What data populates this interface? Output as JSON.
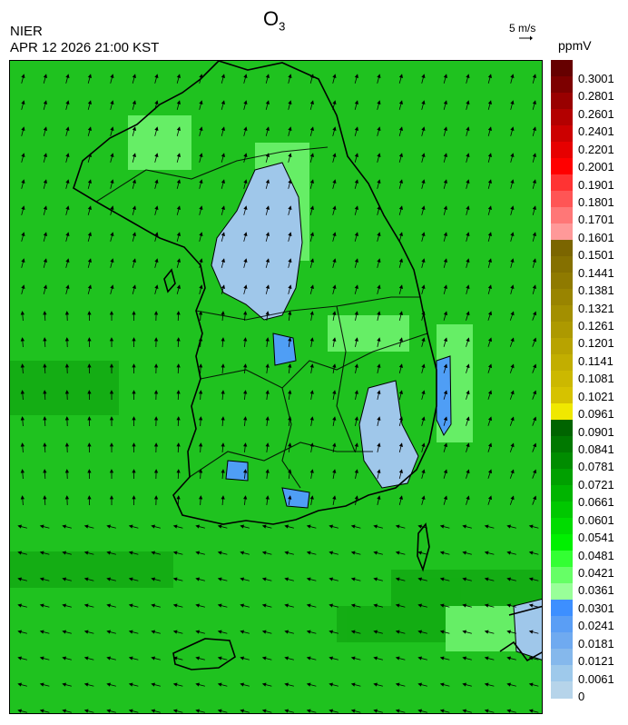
{
  "header": {
    "agency": "NIER",
    "datetime": "APR 12 2026 21:00 KST",
    "title_main": "O",
    "title_sub": "3",
    "wind_ref_label": "5 m/s"
  },
  "legend": {
    "unit": "ppmV",
    "colors": [
      "#660000",
      "#7d0000",
      "#990000",
      "#b30000",
      "#cc0000",
      "#e60000",
      "#ff0000",
      "#ff3333",
      "#ff5555",
      "#ff7777",
      "#ff9999",
      "#7b6500",
      "#857000",
      "#8f7a00",
      "#998400",
      "#a38f00",
      "#ad9900",
      "#b8a300",
      "#c2ae00",
      "#ccb800",
      "#d6c200",
      "#f0e800",
      "#006400",
      "#007800",
      "#008c00",
      "#00a000",
      "#00b400",
      "#00c800",
      "#00dc00",
      "#00f000",
      "#33ff33",
      "#66ff66",
      "#99ff99",
      "#3d8fff",
      "#5a9ef5",
      "#6faaf0",
      "#85b8ec",
      "#9ec9eb",
      "#b6d4ea"
    ],
    "ticks": [
      "0.3001",
      "0.2801",
      "0.2601",
      "0.2401",
      "0.2201",
      "0.2001",
      "0.1901",
      "0.1801",
      "0.1701",
      "0.1601",
      "0.1501",
      "0.1441",
      "0.1381",
      "0.1321",
      "0.1261",
      "0.1201",
      "0.1141",
      "0.1081",
      "0.1021",
      "0.0961",
      "0.0901",
      "0.0841",
      "0.0781",
      "0.0721",
      "0.0661",
      "0.0601",
      "0.0541",
      "0.0481",
      "0.0421",
      "0.0361",
      "0.0301",
      "0.0241",
      "0.0181",
      "0.0121",
      "0.0061",
      "0"
    ]
  },
  "map": {
    "background_color": "#1fc21f",
    "low_ozone_color": "#9fc7ea",
    "mid_ozone_color": "#4f9ef5",
    "high_green_color": "#66ee66"
  }
}
